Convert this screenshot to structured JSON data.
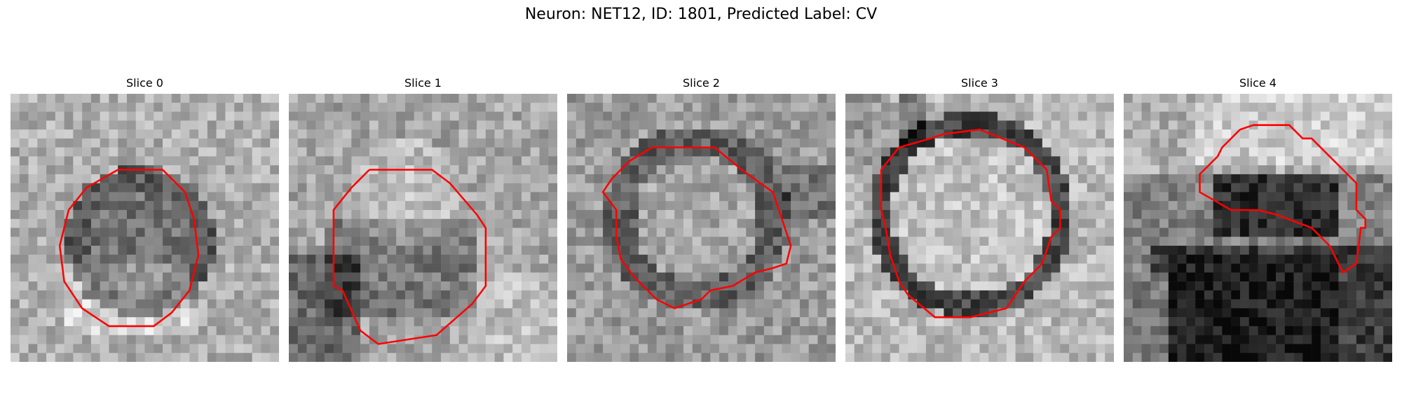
{
  "figure": {
    "title": "Neuron: NET12, ID: 1801, Predicted Label: CV"
  },
  "panels": [
    {
      "title": "Slice 0",
      "blob": "ring-small"
    },
    {
      "title": "Slice 1",
      "blob": "bright-core"
    },
    {
      "title": "Slice 2",
      "blob": "dark-ring"
    },
    {
      "title": "Slice 3",
      "blob": "bright-disk"
    },
    {
      "title": "Slice 4",
      "blob": "dark-lower"
    }
  ],
  "colors": {
    "contour": "#ff0000"
  }
}
